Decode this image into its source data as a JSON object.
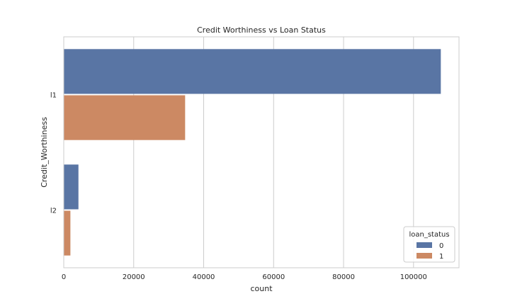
{
  "chart_data": {
    "type": "bar",
    "orientation": "horizontal",
    "title": "Credit Worthiness vs Loan Status",
    "xlabel": "count",
    "ylabel": "Credit_Worthiness",
    "categories": [
      "l1",
      "l2"
    ],
    "series": [
      {
        "name": "0",
        "values": [
          107800,
          4200
        ],
        "color": "#5975a4"
      },
      {
        "name": "1",
        "values": [
          34700,
          1900
        ],
        "color": "#cc8963"
      }
    ],
    "xlim": [
      0,
      113000
    ],
    "xticks": [
      0,
      20000,
      40000,
      60000,
      80000,
      100000
    ],
    "grid": "vertical",
    "legend": {
      "title": "loan_status",
      "position": "bottom-right"
    }
  }
}
